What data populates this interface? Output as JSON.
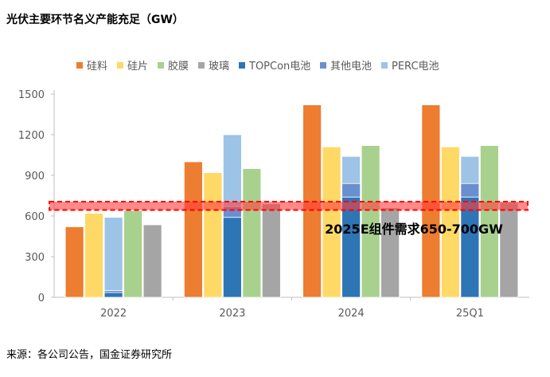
{
  "title": "光伏主要环节名义产能充足（GW）",
  "source": "来源：各公司公告，国金证券研究所",
  "chart_data": {
    "type": "bar",
    "title": "光伏主要环节名义产能充足（GW）",
    "categories": [
      "2022",
      "2023",
      "2024",
      "25Q1"
    ],
    "ylim": [
      0,
      1500
    ],
    "yticks": [
      0,
      300,
      600,
      900,
      1200,
      1500
    ],
    "legend_position": "top",
    "series": [
      {
        "name": "硅料",
        "color": "#ED7D31",
        "values": [
          520,
          1000,
          1420,
          1420
        ]
      },
      {
        "name": "硅片",
        "color": "#FFD966",
        "values": [
          620,
          920,
          1110,
          1110
        ]
      },
      {
        "name": "TOPCon电池",
        "color": "#2E75B6",
        "values": [
          35,
          590,
          740,
          740
        ],
        "stack": "cell"
      },
      {
        "name": "其他电池",
        "color": "#6A8FD0",
        "values": [
          15,
          80,
          100,
          100
        ],
        "stack": "cell"
      },
      {
        "name": "PERC电池",
        "color": "#9DC3E6",
        "values": [
          540,
          530,
          200,
          200
        ],
        "stack": "cell"
      },
      {
        "name": "胶膜",
        "color": "#A9D18E",
        "values": [
          640,
          950,
          1120,
          1120
        ]
      },
      {
        "name": "玻璃",
        "color": "#A5A5A5",
        "values": [
          535,
          690,
          660,
          700
        ]
      }
    ],
    "legend_order": [
      "硅料",
      "硅片",
      "胶膜",
      "玻璃",
      "TOPCon电池",
      "其他电池",
      "PERC电池"
    ],
    "annotation": {
      "text": "2025E组件需求650-700GW",
      "range": [
        650,
        700
      ],
      "color": "#FF0000"
    }
  }
}
